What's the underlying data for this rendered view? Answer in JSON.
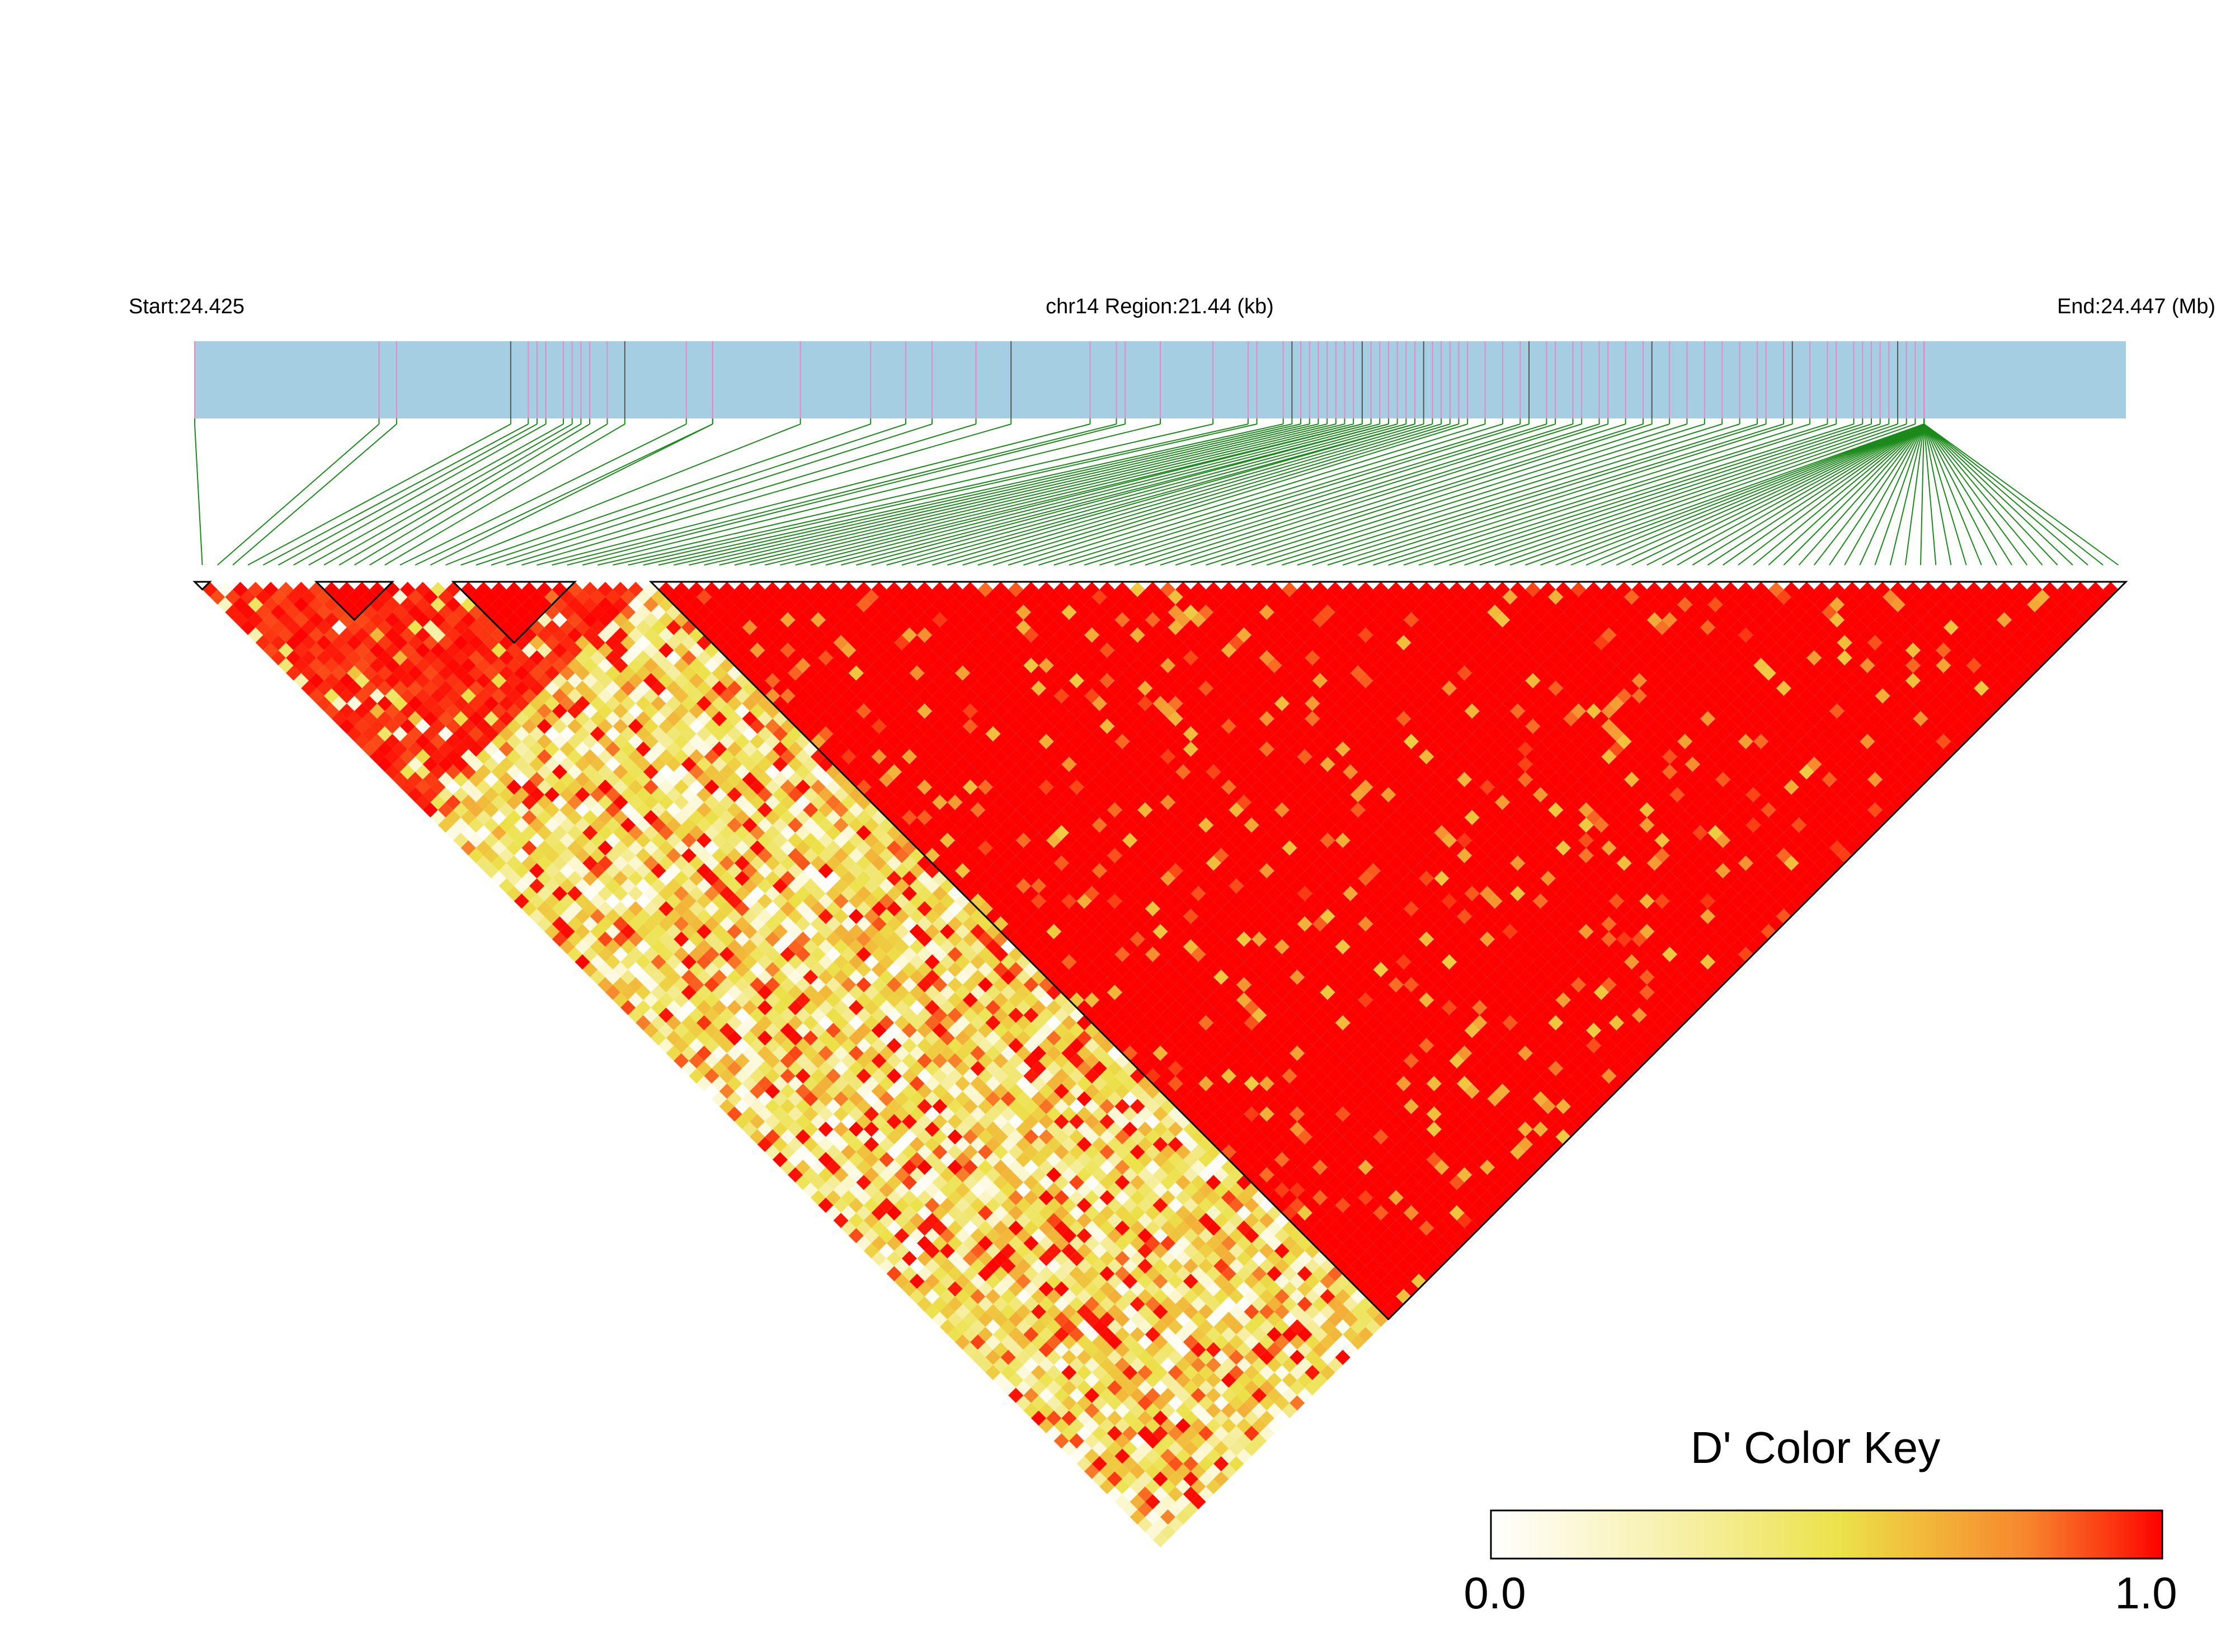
{
  "header": {
    "start_label": "Start:24.425",
    "region_label": "chr14 Region:21.44 (kb)",
    "end_label": "End:24.447 (Mb)"
  },
  "legend": {
    "title": "D' Color Key",
    "min_label": "0.0",
    "max_label": "1.0"
  },
  "chart_data": {
    "type": "heatmap",
    "subtype": "linkage-disequilibrium-triangle",
    "chromosome": "chr14",
    "region_start_mb": 24.425,
    "region_end_mb": 24.447,
    "region_length_kb": 21.44,
    "metric": "D'",
    "value_range": [
      0.0,
      1.0
    ],
    "n_snps": 127,
    "color_scale": [
      "#ffffff",
      "#fbf6c9",
      "#f2e87e",
      "#ece24a",
      "#f2b73a",
      "#f7852c",
      "#fb4a17",
      "#ff0000"
    ],
    "colors": {
      "gene_bar": "#a6cee3",
      "snp_tick": "#e589c6",
      "snp_tick_dark": "#555555",
      "connector": "#1b8a1b",
      "strong_ld": "#ff0000"
    },
    "snp_positions_mb": [
      24.425,
      24.4271,
      24.4273,
      24.4286,
      24.4288,
      24.4289,
      24.429,
      24.4292,
      24.4293,
      24.4294,
      24.4295,
      24.4297,
      24.4299,
      24.4306,
      24.4309,
      24.4309,
      24.4319,
      24.4327,
      24.4331,
      24.4334,
      24.4339,
      24.4343,
      24.4352,
      24.4355,
      24.4356,
      24.436,
      24.4366,
      24.437,
      24.4371,
      24.4374,
      24.4375,
      24.4376,
      24.4377,
      24.4378,
      24.4379,
      24.438,
      24.4381,
      24.4382,
      24.4383,
      24.4383,
      24.4384,
      24.4385,
      24.4386,
      24.4386,
      24.4387,
      24.4388,
      24.4389,
      24.4389,
      24.439,
      24.4391,
      24.4392,
      24.4393,
      24.4394,
      24.4395,
      24.4397,
      24.4399,
      24.4401,
      24.4402,
      24.4404,
      24.4405,
      24.4407,
      24.4408,
      24.441,
      24.4411,
      24.4413,
      24.4415,
      24.4416,
      24.4418,
      24.442,
      24.4422,
      24.4424,
      24.4426,
      24.4428,
      24.4429,
      24.4431,
      24.4432,
      24.4434,
      24.4436,
      24.4437,
      24.4439,
      24.444,
      24.4441,
      24.4442,
      24.4443,
      24.4444,
      24.4445,
      24.4446,
      24.4447,
      24.4447,
      24.4447,
      24.4447,
      24.4447,
      24.4447,
      24.4447,
      24.4447,
      24.4447,
      24.4447,
      24.4447,
      24.4447,
      24.4447,
      24.4447,
      24.4447,
      24.4447,
      24.4447,
      24.4447,
      24.4447,
      24.4447,
      24.4447,
      24.4447,
      24.4447,
      24.4447,
      24.4447,
      24.4447,
      24.4447,
      24.4447,
      24.4447,
      24.4447,
      24.4447,
      24.4447,
      24.4447,
      24.4447,
      24.4447,
      24.4447,
      24.4447,
      24.4447,
      24.4447,
      24.4447
    ],
    "ld_blocks_snp_index": [
      [
        0,
        1
      ],
      [
        8,
        13
      ],
      [
        17,
        25
      ],
      [
        30,
        127
      ]
    ],
    "seed": 20140425
  }
}
